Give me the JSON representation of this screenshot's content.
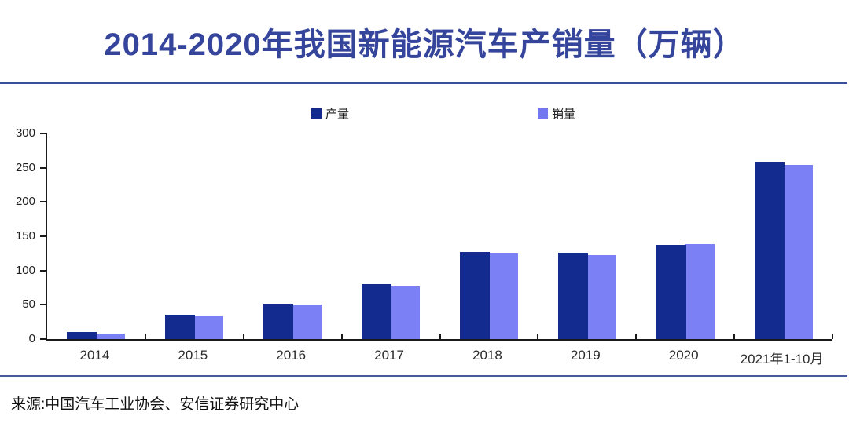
{
  "title": "2014-2020年我国新能源汽车产销量（万辆）",
  "source": "来源:中国汽车工业协会、安信证券研究中心",
  "colors": {
    "title_text": "#35459c",
    "title_rule": "#3b4da0",
    "bottom_rule": "#4a5b9b",
    "production_bar": "#132a8f",
    "sales_bar": "#7c80f5",
    "axis": "#1a1a1a"
  },
  "legend": {
    "production": {
      "label": "产量",
      "color": "#132a8f"
    },
    "sales": {
      "label": "销量",
      "color": "#7276f0"
    }
  },
  "chart_data": {
    "type": "bar",
    "title": "2014-2020年我国新能源汽车产销量（万辆）",
    "categories": [
      "2014",
      "2015",
      "2016",
      "2017",
      "2018",
      "2019",
      "2020",
      "2021年1-10月"
    ],
    "series": [
      {
        "name": "产量",
        "color": "#132a8f",
        "values": [
          10,
          35,
          52,
          80,
          127,
          126,
          137,
          258
        ]
      },
      {
        "name": "销量",
        "color": "#7c80f5",
        "values": [
          8,
          33,
          50,
          77,
          125,
          122,
          138,
          254
        ]
      }
    ],
    "xlabel": "",
    "ylabel": "",
    "ylim": [
      0,
      300
    ],
    "yticks": [
      0,
      50,
      100,
      150,
      200,
      250,
      300
    ],
    "grid": false,
    "legend_position": "top"
  }
}
